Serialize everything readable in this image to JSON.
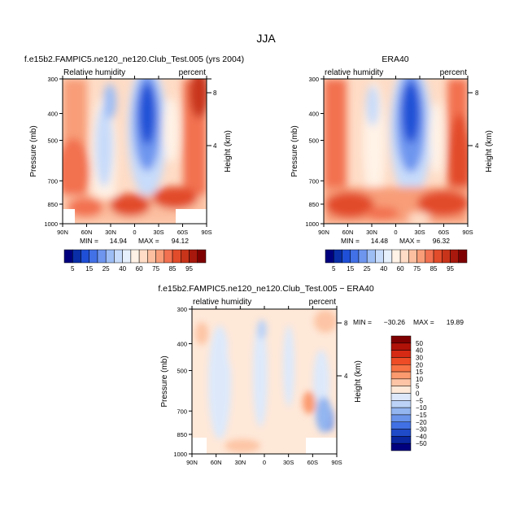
{
  "figure_title": "JJA",
  "chart_data": [
    {
      "type": "heatmap",
      "title": "f.e15b2.FAMPIC5.ne120_ne120.Club_Test.005 (yrs 2004)",
      "left_label": "Relative humidity",
      "right_label": "percent",
      "ylabel": "Pressure (mb)",
      "y2label": "Height (km)",
      "y_ticks": [
        "300",
        "400",
        "500",
        "700",
        "850",
        "1000"
      ],
      "y2_ticks": [
        "8",
        "4"
      ],
      "x_ticks": [
        "90N",
        "60N",
        "30N",
        "0",
        "30S",
        "60S",
        "90S"
      ],
      "min_label": "MIN =",
      "min_value": "14.94",
      "max_label": "MAX =",
      "max_value": "94.12",
      "colorbar_labels": [
        "5",
        "15",
        "25",
        "40",
        "60",
        "75",
        "85",
        "95"
      ],
      "colorbar_colors": [
        "#00007f",
        "#0a2ea8",
        "#1f4fd6",
        "#4270e6",
        "#6e96ef",
        "#9dbdf5",
        "#c7dbfa",
        "#e6effc",
        "#fff2e6",
        "#fedcc6",
        "#fcbfa0",
        "#f89d78",
        "#f27150",
        "#e24c2a",
        "#c8341a",
        "#a8180c",
        "#7f0000"
      ]
    },
    {
      "type": "heatmap",
      "title": "ERA40",
      "left_label": "relative humidity",
      "right_label": "percent",
      "ylabel": "Pressure (mb)",
      "y2label": "Height (km)",
      "y_ticks": [
        "300",
        "400",
        "500",
        "700",
        "850",
        "1000"
      ],
      "y2_ticks": [
        "8",
        "4"
      ],
      "x_ticks": [
        "90N",
        "60N",
        "30N",
        "0",
        "30S",
        "60S",
        "90S"
      ],
      "min_label": "MIN =",
      "min_value": "14.48",
      "max_label": "MAX =",
      "max_value": "96.32",
      "colorbar_labels": [
        "5",
        "15",
        "25",
        "40",
        "60",
        "75",
        "85",
        "95"
      ],
      "colorbar_colors": [
        "#00007f",
        "#0a2ea8",
        "#1f4fd6",
        "#4270e6",
        "#6e96ef",
        "#9dbdf5",
        "#c7dbfa",
        "#e6effc",
        "#fff2e6",
        "#fedcc6",
        "#fcbfa0",
        "#f89d78",
        "#f27150",
        "#e24c2a",
        "#c8341a",
        "#a8180c",
        "#7f0000"
      ]
    },
    {
      "type": "heatmap",
      "title": "f.e15b2.FAMPIC5.ne120_ne120.Club_Test.005 − ERA40",
      "left_label": "relative humidity",
      "right_label": "percent",
      "ylabel": "Pressure (mb)",
      "y2label": "Height (km)",
      "y_ticks": [
        "300",
        "400",
        "500",
        "700",
        "850",
        "1000"
      ],
      "y2_ticks": [
        "8",
        "4"
      ],
      "x_ticks": [
        "90N",
        "60N",
        "30N",
        "0",
        "30S",
        "60S",
        "90S"
      ],
      "min_label": "MIN =",
      "min_value": "−30.26",
      "max_label": "MAX =",
      "max_value": "19.89",
      "colorbar_labels": [
        "50",
        "40",
        "30",
        "20",
        "15",
        "10",
        "5",
        "0",
        "−5",
        "−10",
        "−15",
        "−20",
        "−30",
        "−40",
        "−50"
      ],
      "colorbar_colors": [
        "#7f0000",
        "#b01208",
        "#d62a14",
        "#ee4c26",
        "#f77244",
        "#fb9a6e",
        "#fdc5a5",
        "#fee8d8",
        "#dde9fb",
        "#bcd3f7",
        "#93b5f0",
        "#6a94ea",
        "#4070e3",
        "#1f4bc8",
        "#0a27a0",
        "#00007f"
      ]
    }
  ]
}
